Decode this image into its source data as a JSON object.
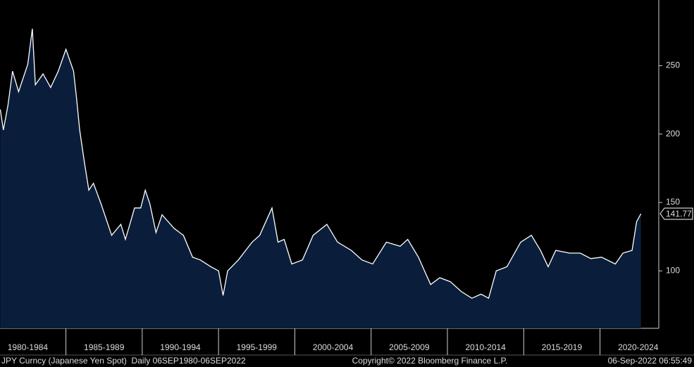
{
  "chart_data": {
    "type": "line",
    "series": [
      {
        "name": "JPY Curncy",
        "color": "#ffffff",
        "fill": "#0a1e3c",
        "x": [
          1980.7,
          1980.9,
          1981.2,
          1981.5,
          1981.9,
          1982.5,
          1982.8,
          1983.0,
          1983.5,
          1984.0,
          1984.5,
          1985.0,
          1985.5,
          1985.7,
          1985.9,
          1986.2,
          1986.5,
          1986.8,
          1987.3,
          1988.0,
          1988.6,
          1988.9,
          1989.5,
          1989.9,
          1990.2,
          1990.5,
          1990.9,
          1991.3,
          1992.1,
          1992.7,
          1993.3,
          1993.8,
          1994.5,
          1995.0,
          1995.3,
          1995.6,
          1996.3,
          1997.2,
          1997.7,
          1998.5,
          1998.9,
          1999.3,
          1999.8,
          2000.5,
          2001.2,
          2002.1,
          2002.8,
          2003.7,
          2004.4,
          2005.1,
          2006.0,
          2006.9,
          2007.4,
          2008.1,
          2008.5,
          2008.9,
          2009.5,
          2010.2,
          2010.9,
          2011.6,
          2012.2,
          2012.7,
          2013.2,
          2013.9,
          2014.8,
          2015.5,
          2016.1,
          2016.6,
          2017.1,
          2018.0,
          2018.7,
          2019.4,
          2020.1,
          2021.0,
          2021.5,
          2022.1,
          2022.4,
          2022.68
        ],
        "values": [
          218,
          203,
          221,
          246,
          231,
          251,
          277,
          236,
          244,
          234,
          246,
          262,
          246,
          226,
          203,
          180,
          159,
          164,
          149,
          126,
          134,
          123,
          146,
          146,
          159,
          149,
          128,
          141,
          131,
          126,
          110,
          108,
          103,
          100,
          82,
          100,
          108,
          121,
          126,
          146,
          121,
          123,
          105,
          108,
          126,
          134,
          121,
          115,
          108,
          105,
          121,
          118,
          123,
          110,
          100,
          90,
          95,
          92,
          85,
          80,
          83,
          80,
          100,
          103,
          121,
          126,
          115,
          103,
          115,
          113,
          113,
          109,
          110,
          105,
          113,
          115,
          136,
          141.77
        ]
      }
    ],
    "xlim": [
      1980.68,
      2023.85
    ],
    "xticks": [
      {
        "value": 1982.5,
        "label": "1980-1984"
      },
      {
        "value": 1987.5,
        "label": "1985-1989"
      },
      {
        "value": 1992.5,
        "label": "1990-1994"
      },
      {
        "value": 1997.5,
        "label": "1995-1999"
      },
      {
        "value": 2002.5,
        "label": "2000-2004"
      },
      {
        "value": 2007.5,
        "label": "2005-2009"
      },
      {
        "value": 2012.5,
        "label": "2010-2014"
      },
      {
        "value": 2017.5,
        "label": "2015-2019"
      },
      {
        "value": 2022.5,
        "label": "2020-2024"
      }
    ],
    "ylim": [
      58,
      298
    ],
    "yticks": [
      100,
      150,
      200,
      250
    ],
    "footer": {
      "left": "JPY Curncy (Japanese Yen Spot)  Daily 06SEP1980-06SEP2022",
      "center": "Copyright© 2022 Bloomberg Finance L.P.",
      "right": "06-Sep-2022 06:55:49"
    }
  }
}
